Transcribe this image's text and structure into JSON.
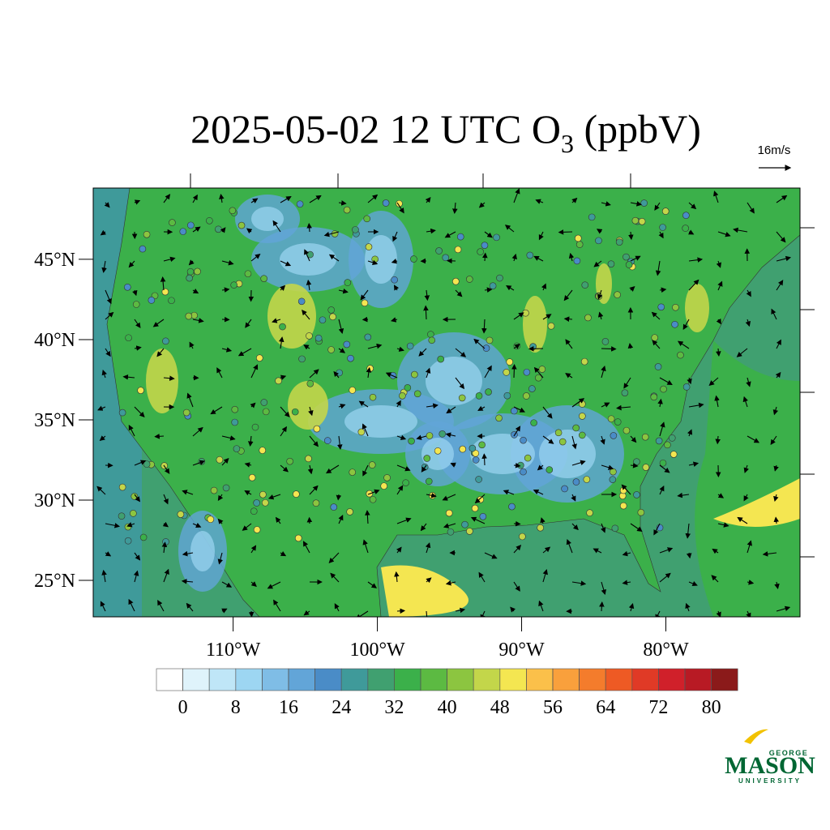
{
  "title": {
    "prefix": "2025-05-02 12 UTC O",
    "subscript": "3",
    "suffix": " (ppbV)"
  },
  "wind_reference": "16m/s",
  "map": {
    "latlim": [
      22.73,
      49.44
    ],
    "lonlim": [
      -119.7,
      -70.7
    ],
    "lat_ticks": [
      {
        "value": 25,
        "label": "25°N"
      },
      {
        "value": 30,
        "label": "30°N"
      },
      {
        "value": 35,
        "label": "35°N"
      },
      {
        "value": 40,
        "label": "40°N"
      },
      {
        "value": 45,
        "label": "45°N"
      }
    ],
    "lon_ticks": [
      {
        "value": -110,
        "label": "110°W"
      },
      {
        "value": -100,
        "label": "100°W"
      },
      {
        "value": -90,
        "label": "90°W"
      },
      {
        "value": -80,
        "label": "80°W"
      }
    ]
  },
  "colorbar": {
    "levels": [
      0,
      4,
      8,
      12,
      16,
      20,
      24,
      28,
      32,
      36,
      40,
      44,
      48,
      52,
      56,
      60,
      64,
      68,
      72,
      76,
      80
    ],
    "ticks": [
      0,
      8,
      16,
      24,
      32,
      40,
      48,
      56,
      64,
      72,
      80
    ],
    "colors": [
      "#ffffff",
      "#dff3fb",
      "#bfe6f7",
      "#9dd6f2",
      "#7fbde6",
      "#62a5d8",
      "#4a8cc7",
      "#3f9a9a",
      "#40a070",
      "#3bb04a",
      "#5cba42",
      "#8cc540",
      "#c3d64a",
      "#f4e651",
      "#fbc04a",
      "#f9a03c",
      "#f47c2c",
      "#ee5a24",
      "#e03a26",
      "#d0202a",
      "#b81a24",
      "#8b1a1a"
    ]
  },
  "logo": {
    "top": "GEORGE",
    "main": "MASON",
    "bottom": "UNIVERSITY"
  }
}
